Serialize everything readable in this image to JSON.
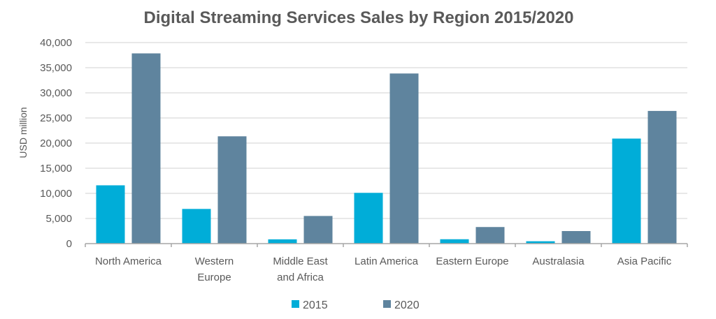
{
  "chart_data": {
    "type": "bar",
    "title": "Digital Streaming Services Sales by Region 2015/2020",
    "xlabel": "",
    "ylabel": "USD million",
    "ylim": [
      0,
      40000
    ],
    "yticks": [
      0,
      5000,
      10000,
      15000,
      20000,
      25000,
      30000,
      35000,
      40000
    ],
    "ytick_labels": [
      "0",
      "5,000",
      "10,000",
      "15,000",
      "20,000",
      "25,000",
      "30,000",
      "35,000",
      "40,000"
    ],
    "grid": true,
    "legend_position": "bottom-center",
    "categories": [
      [
        "North America"
      ],
      [
        "Western",
        "Europe"
      ],
      [
        "Middle East",
        "and Africa"
      ],
      [
        "Latin America"
      ],
      [
        "Eastern Europe"
      ],
      [
        "Australasia"
      ],
      [
        "Asia Pacific"
      ]
    ],
    "series": [
      {
        "name": "2015",
        "color": "#00ADD8",
        "values": [
          11600,
          6900,
          850,
          10100,
          870,
          470,
          20900
        ]
      },
      {
        "name": "2020",
        "color": "#5F849E",
        "values": [
          37850,
          21350,
          5500,
          33850,
          3300,
          2500,
          26400
        ]
      }
    ]
  }
}
